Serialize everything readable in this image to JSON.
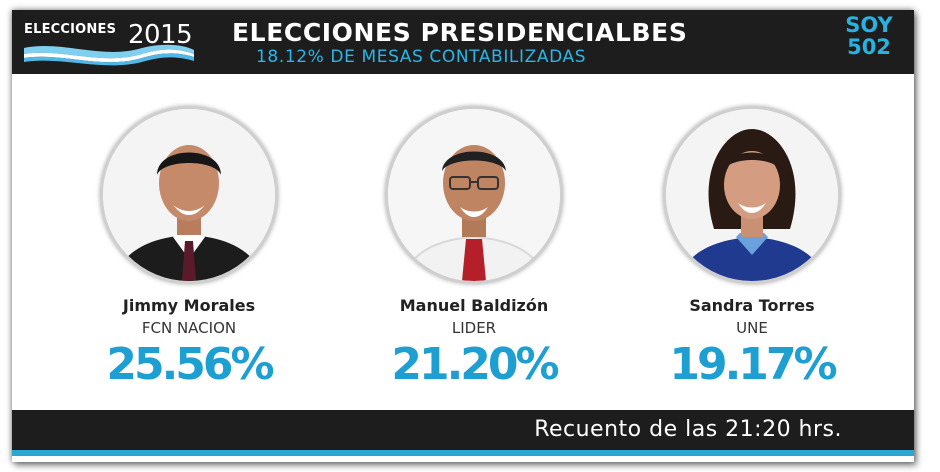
{
  "header": {
    "logo_word": "ELECCIONES",
    "logo_year": "2015",
    "title": "ELECCIONES PRESIDENCIALBES",
    "subtitle": "18.12% DE MESAS CONTABILIZADAS",
    "brand_line1": "SOY",
    "brand_line2": "502"
  },
  "candidates": [
    {
      "name": "Jimmy Morales",
      "party": "FCN NACION",
      "percent": "25.56%"
    },
    {
      "name": "Manuel Baldizón",
      "party": "LIDER",
      "percent": "21.20%"
    },
    {
      "name": "Sandra Torres",
      "party": "UNE",
      "percent": "19.17%"
    }
  ],
  "footer": {
    "text": "Recuento de las 21:20 hrs."
  },
  "colors": {
    "bar_background": "#1d1d1d",
    "accent_blue": "#1e9fd2",
    "subtitle_blue": "#29b6e8",
    "stripe_blue": "#2aa6d6"
  }
}
